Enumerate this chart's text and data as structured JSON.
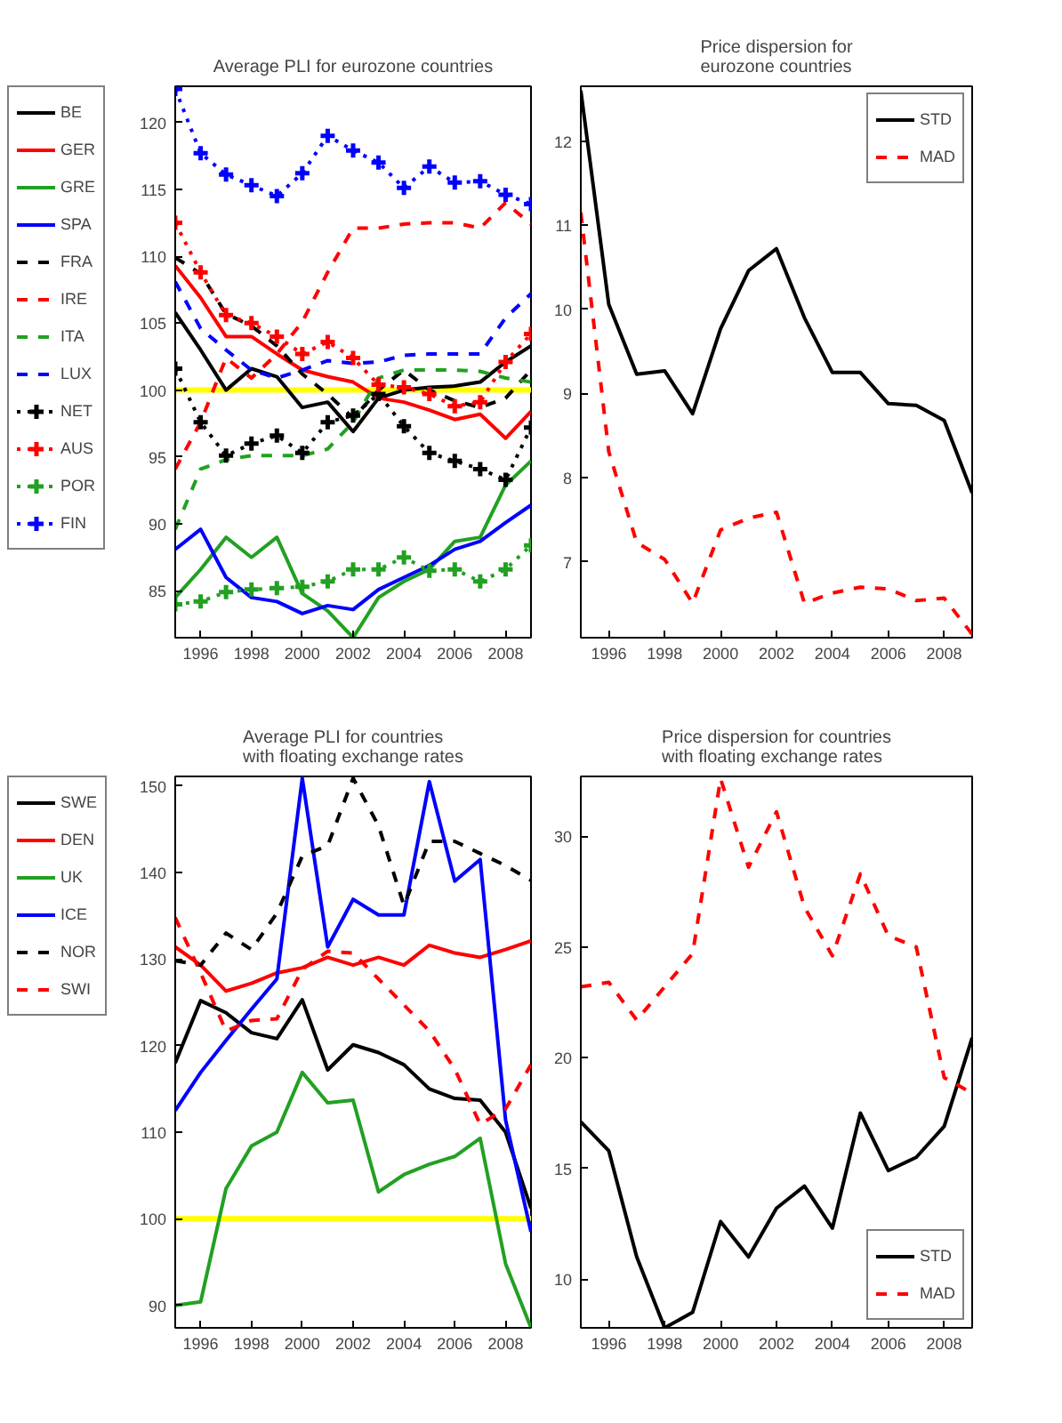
{
  "chart_data": [
    {
      "type": "line",
      "title": "Average PLI for eurozone countries",
      "x": [
        1995,
        1996,
        1997,
        1998,
        1999,
        2000,
        2001,
        2002,
        2003,
        2004,
        2005,
        2006,
        2007,
        2008,
        2009
      ],
      "xlim": [
        1995,
        2009
      ],
      "xticks": [
        1996,
        1998,
        2000,
        2002,
        2004,
        2006,
        2008
      ],
      "ylim": [
        81.5,
        122.7
      ],
      "yticks": [
        85,
        90,
        95,
        100,
        105,
        110,
        115,
        120
      ],
      "grid": false,
      "legend": "left",
      "ref_lines": [
        {
          "axis": "y",
          "value": 100,
          "color": "#ffff00"
        }
      ],
      "series": [
        {
          "name": "BE",
          "color": "#000000",
          "line_style": "solid",
          "marker": "none",
          "values": [
            105.8,
            103.0,
            100.0,
            101.6,
            101.0,
            98.7,
            99.1,
            96.9,
            99.4,
            100.0,
            100.2,
            100.3,
            100.6,
            102.1,
            103.3
          ]
        },
        {
          "name": "GER",
          "color": "#ff0000",
          "line_style": "solid",
          "marker": "none",
          "values": [
            109.3,
            106.9,
            104.0,
            104.0,
            102.7,
            101.5,
            101.0,
            100.6,
            99.4,
            99.1,
            98.5,
            97.8,
            98.2,
            96.4,
            98.4
          ]
        },
        {
          "name": "GRE",
          "color": "#22a022",
          "line_style": "solid",
          "marker": "none",
          "values": [
            84.5,
            86.6,
            89.0,
            87.5,
            89.0,
            84.8,
            83.5,
            81.5,
            84.5,
            85.7,
            86.6,
            88.7,
            89.0,
            92.9,
            94.7
          ]
        },
        {
          "name": "SPA",
          "color": "#0000ff",
          "line_style": "solid",
          "marker": "none",
          "values": [
            88.1,
            89.6,
            86.0,
            84.5,
            84.2,
            83.3,
            83.9,
            83.6,
            85.1,
            86.0,
            86.9,
            88.1,
            88.7,
            90.1,
            91.4
          ]
        },
        {
          "name": "FRA",
          "color": "#000000",
          "line_style": "dashed",
          "marker": "none",
          "values": [
            109.9,
            108.7,
            105.7,
            104.8,
            103.3,
            101.2,
            99.7,
            97.9,
            100.0,
            101.5,
            100.0,
            99.2,
            98.7,
            99.4,
            101.5
          ]
        },
        {
          "name": "IRE",
          "color": "#ff0000",
          "line_style": "dashed",
          "marker": "none",
          "values": [
            94.1,
            97.6,
            102.4,
            100.9,
            102.7,
            105.1,
            108.8,
            112.1,
            112.1,
            112.4,
            112.5,
            112.5,
            112.1,
            114.0,
            112.4
          ]
        },
        {
          "name": "ITA",
          "color": "#22a022",
          "line_style": "dashed",
          "marker": "none",
          "values": [
            89.6,
            94.1,
            94.8,
            95.1,
            95.1,
            95.1,
            95.6,
            97.6,
            100.9,
            101.5,
            101.5,
            101.5,
            101.4,
            100.9,
            100.6
          ]
        },
        {
          "name": "LUX",
          "color": "#0000ff",
          "line_style": "dashed",
          "marker": "none",
          "values": [
            108.1,
            104.6,
            103.0,
            101.5,
            100.9,
            101.5,
            102.2,
            102.0,
            102.1,
            102.6,
            102.7,
            102.7,
            102.7,
            105.4,
            107.2
          ]
        },
        {
          "name": "NET",
          "color": "#000000",
          "line_style": "dotted",
          "marker": "cross",
          "values": [
            101.6,
            97.6,
            95.1,
            96.0,
            96.6,
            95.3,
            97.6,
            98.1,
            99.7,
            97.3,
            95.3,
            94.7,
            94.1,
            93.3,
            97.2
          ]
        },
        {
          "name": "AUS",
          "color": "#ff0000",
          "line_style": "dotted",
          "marker": "cross",
          "values": [
            112.5,
            108.8,
            105.6,
            105.0,
            104.0,
            102.7,
            103.6,
            102.4,
            100.4,
            100.2,
            99.7,
            98.8,
            99.1,
            102.1,
            104.2
          ]
        },
        {
          "name": "POR",
          "color": "#22a022",
          "line_style": "dotted",
          "marker": "cross",
          "values": [
            84.0,
            84.2,
            84.9,
            85.1,
            85.2,
            85.3,
            85.7,
            86.6,
            86.6,
            87.5,
            86.5,
            86.6,
            85.7,
            86.6,
            88.4
          ]
        },
        {
          "name": "FIN",
          "color": "#0000ff",
          "line_style": "dotted",
          "marker": "cross",
          "values": [
            122.5,
            117.7,
            116.1,
            115.3,
            114.5,
            116.2,
            119.0,
            117.9,
            117.0,
            115.1,
            116.7,
            115.5,
            115.6,
            114.6,
            113.9
          ]
        }
      ]
    },
    {
      "type": "line",
      "title": "Price dispersion for eurozone countries",
      "x": [
        1995,
        1996,
        1997,
        1998,
        1999,
        2000,
        2001,
        2002,
        2003,
        2004,
        2005,
        2006,
        2007,
        2008,
        2009
      ],
      "xlim": [
        1995,
        2009
      ],
      "xticks": [
        1996,
        1998,
        2000,
        2002,
        2004,
        2006,
        2008
      ],
      "ylim": [
        6.1,
        12.65
      ],
      "yticks": [
        7,
        8,
        9,
        10,
        11,
        12
      ],
      "grid": false,
      "legend": "top right",
      "series": [
        {
          "name": "STD",
          "color": "#000000",
          "line_style": "solid",
          "marker": "none",
          "values": [
            12.6,
            10.06,
            9.23,
            9.27,
            8.76,
            9.77,
            10.46,
            10.72,
            9.9,
            9.25,
            9.25,
            8.88,
            8.86,
            8.68,
            7.82
          ]
        },
        {
          "name": "MAD",
          "color": "#ff0000",
          "line_style": "dashed",
          "marker": "none",
          "values": [
            11.15,
            8.31,
            7.23,
            7.03,
            6.51,
            7.38,
            7.52,
            7.59,
            6.51,
            6.63,
            6.7,
            6.68,
            6.54,
            6.57,
            6.14
          ]
        }
      ]
    },
    {
      "type": "line",
      "title": "Average PLI for countries with floating exchange rates",
      "x": [
        1995,
        1996,
        1997,
        1998,
        1999,
        2000,
        2001,
        2002,
        2003,
        2004,
        2005,
        2006,
        2007,
        2008,
        2009
      ],
      "xlim": [
        1995,
        2009
      ],
      "xticks": [
        1996,
        1998,
        2000,
        2002,
        2004,
        2006,
        2008
      ],
      "ylim": [
        87.4,
        151.1
      ],
      "yticks": [
        90,
        100,
        110,
        120,
        130,
        140,
        150
      ],
      "grid": false,
      "legend": "left",
      "ref_lines": [
        {
          "axis": "y",
          "value": 100,
          "color": "#ffff00"
        }
      ],
      "series": [
        {
          "name": "SWE",
          "color": "#000000",
          "line_style": "solid",
          "marker": "none",
          "values": [
            118.0,
            125.2,
            123.8,
            121.5,
            120.8,
            125.3,
            117.2,
            120.1,
            119.2,
            117.8,
            115.0,
            113.9,
            113.7,
            110.0,
            101.2
          ]
        },
        {
          "name": "DEN",
          "color": "#ff0000",
          "line_style": "solid",
          "marker": "none",
          "values": [
            131.4,
            129.3,
            126.3,
            127.2,
            128.4,
            129.0,
            130.2,
            129.3,
            130.2,
            129.3,
            131.6,
            130.7,
            130.2,
            131.1,
            132.1
          ]
        },
        {
          "name": "UK",
          "color": "#22a022",
          "line_style": "solid",
          "marker": "none",
          "values": [
            90.0,
            90.4,
            103.5,
            108.4,
            110.0,
            116.9,
            113.4,
            113.7,
            103.1,
            105.1,
            106.3,
            107.2,
            109.3,
            94.8,
            87.4
          ]
        },
        {
          "name": "ICE",
          "color": "#0000ff",
          "line_style": "solid",
          "marker": "none",
          "values": [
            112.5,
            116.9,
            120.6,
            124.2,
            127.7,
            150.9,
            131.4,
            136.9,
            135.1,
            135.1,
            150.5,
            139.0,
            141.5,
            111.4,
            98.5
          ]
        },
        {
          "name": "NOR",
          "color": "#000000",
          "line_style": "dashed",
          "marker": "none",
          "values": [
            129.8,
            129.3,
            133.0,
            131.1,
            135.3,
            141.9,
            143.1,
            150.9,
            145.4,
            136.2,
            143.6,
            143.6,
            142.2,
            140.8,
            139.1
          ]
        },
        {
          "name": "SWI",
          "color": "#ff0000",
          "line_style": "dashed",
          "marker": "none",
          "values": [
            134.8,
            128.4,
            121.7,
            122.9,
            123.1,
            128.8,
            130.9,
            130.7,
            127.7,
            124.7,
            121.7,
            117.3,
            110.9,
            112.7,
            117.8
          ]
        }
      ]
    },
    {
      "type": "line",
      "title": "Price dispersion for countries with floating exchange rates",
      "x": [
        1995,
        1996,
        1997,
        1998,
        1999,
        2000,
        2001,
        2002,
        2003,
        2004,
        2005,
        2006,
        2007,
        2008,
        2009
      ],
      "xlim": [
        1995,
        2009
      ],
      "xticks": [
        1996,
        1998,
        2000,
        2002,
        2004,
        2006,
        2008
      ],
      "ylim": [
        7.8,
        32.7
      ],
      "yticks": [
        10,
        15,
        20,
        25,
        30
      ],
      "grid": false,
      "legend": "bottom right",
      "series": [
        {
          "name": "STD",
          "color": "#000000",
          "line_style": "solid",
          "marker": "none",
          "values": [
            17.1,
            15.8,
            11.0,
            7.8,
            8.5,
            12.6,
            11.0,
            13.2,
            14.2,
            12.3,
            17.5,
            14.9,
            15.5,
            16.9,
            20.9
          ]
        },
        {
          "name": "MAD",
          "color": "#ff0000",
          "line_style": "dashed",
          "marker": "none",
          "values": [
            23.2,
            23.4,
            21.7,
            23.2,
            24.7,
            32.6,
            28.6,
            31.1,
            26.8,
            24.6,
            28.3,
            25.5,
            25.0,
            19.1,
            18.4
          ]
        }
      ]
    }
  ]
}
